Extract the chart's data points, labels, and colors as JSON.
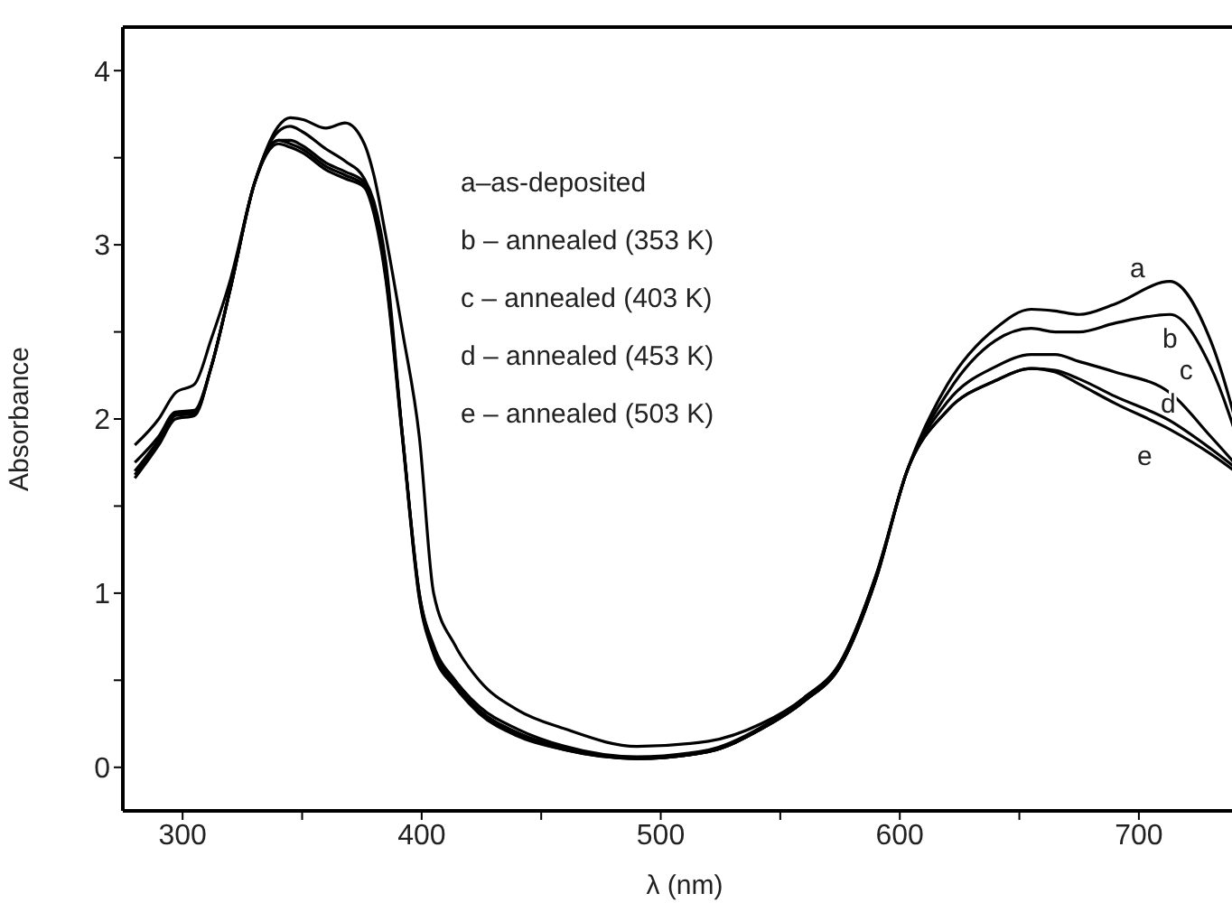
{
  "chart_data": {
    "type": "line",
    "xlabel": "λ (nm)",
    "ylabel": "Absorbance",
    "x": [
      280,
      290,
      297,
      305,
      312,
      320,
      330,
      340,
      345,
      350,
      360,
      368,
      376,
      380,
      385,
      392,
      399,
      405,
      414,
      424,
      440,
      460,
      490,
      520,
      542,
      560,
      575,
      590,
      603,
      620,
      640,
      655,
      665,
      675,
      690,
      713,
      730,
      745
    ],
    "series": [
      {
        "name": "a",
        "color": "#000000",
        "values": [
          1.85,
          2.0,
          2.15,
          2.2,
          2.46,
          2.8,
          3.35,
          3.68,
          3.73,
          3.72,
          3.67,
          3.7,
          3.58,
          3.4,
          3.05,
          2.5,
          1.9,
          1.0,
          0.7,
          0.5,
          0.33,
          0.22,
          0.12,
          0.15,
          0.25,
          0.4,
          0.6,
          1.1,
          1.7,
          2.2,
          2.52,
          2.63,
          2.62,
          2.6,
          2.66,
          2.79,
          2.45,
          1.75
        ]
      },
      {
        "name": "b",
        "color": "#000000",
        "values": [
          1.75,
          1.9,
          2.04,
          2.05,
          2.3,
          2.75,
          3.35,
          3.65,
          3.68,
          3.65,
          3.55,
          3.48,
          3.38,
          3.25,
          2.9,
          1.9,
          1.0,
          0.7,
          0.5,
          0.35,
          0.22,
          0.12,
          0.06,
          0.1,
          0.23,
          0.4,
          0.6,
          1.1,
          1.7,
          2.15,
          2.45,
          2.52,
          2.5,
          2.5,
          2.55,
          2.6,
          2.3,
          1.72
        ]
      },
      {
        "name": "c",
        "color": "#000000",
        "values": [
          1.7,
          1.88,
          2.03,
          2.04,
          2.3,
          2.75,
          3.35,
          3.6,
          3.6,
          3.57,
          3.47,
          3.42,
          3.36,
          3.22,
          2.85,
          1.9,
          1.0,
          0.68,
          0.48,
          0.33,
          0.2,
          0.11,
          0.05,
          0.09,
          0.22,
          0.38,
          0.58,
          1.08,
          1.7,
          2.1,
          2.3,
          2.37,
          2.37,
          2.33,
          2.27,
          2.15,
          1.9,
          1.67
        ]
      },
      {
        "name": "d",
        "color": "#000000",
        "values": [
          1.68,
          1.86,
          2.02,
          2.03,
          2.3,
          2.75,
          3.35,
          3.6,
          3.58,
          3.55,
          3.45,
          3.4,
          3.34,
          3.2,
          2.82,
          1.9,
          0.98,
          0.66,
          0.47,
          0.32,
          0.19,
          0.1,
          0.05,
          0.09,
          0.22,
          0.38,
          0.58,
          1.08,
          1.7,
          2.05,
          2.22,
          2.29,
          2.28,
          2.23,
          2.13,
          1.99,
          1.83,
          1.67
        ]
      },
      {
        "name": "e",
        "color": "#000000",
        "values": [
          1.66,
          1.85,
          2.0,
          2.02,
          2.3,
          2.75,
          3.35,
          3.58,
          3.56,
          3.53,
          3.43,
          3.38,
          3.33,
          3.18,
          2.8,
          1.88,
          0.97,
          0.65,
          0.46,
          0.31,
          0.18,
          0.1,
          0.05,
          0.09,
          0.22,
          0.38,
          0.58,
          1.08,
          1.7,
          2.05,
          2.22,
          2.29,
          2.27,
          2.2,
          2.09,
          1.94,
          1.8,
          1.65
        ]
      }
    ],
    "xlim": [
      275,
      745
    ],
    "xticks": [
      300,
      {
        "value": 350,
        "label": null
      },
      400,
      {
        "value": 450,
        "label": null
      },
      500,
      {
        "value": 550,
        "label": null
      },
      600,
      {
        "value": 650,
        "label": null
      },
      700
    ],
    "ylim": [
      -0.25,
      4.25
    ],
    "yticks": [
      0,
      {
        "value": 0.5,
        "label": null
      },
      1,
      {
        "value": 1.5,
        "label": null
      },
      2,
      {
        "value": 2.5,
        "label": null
      },
      3,
      {
        "value": 3.5,
        "label": null
      },
      4
    ],
    "marker": "none",
    "line_style": "solid",
    "legend": false,
    "grid": false,
    "annotations": [
      "a–as-deposited",
      "b – annealed (353 K)",
      "c – annealed (403 K)",
      "d – annealed (453 K)",
      "e – annealed (503 K)"
    ]
  }
}
